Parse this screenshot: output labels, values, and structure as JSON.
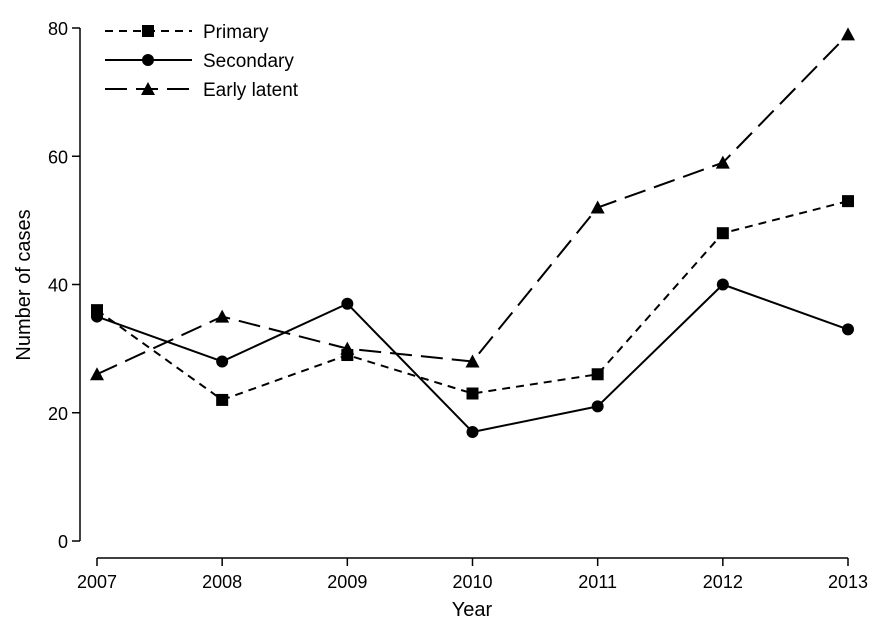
{
  "chart_data": {
    "type": "line",
    "title": "",
    "xlabel": "Year",
    "ylabel": "Number of cases",
    "x": [
      "2007",
      "2008",
      "2009",
      "2010",
      "2011",
      "2012",
      "2013"
    ],
    "ylim": [
      0,
      80
    ],
    "yticks": [
      0,
      20,
      40,
      60,
      80
    ],
    "grid": false,
    "legend_position": "top-left",
    "series": [
      {
        "name": "Primary",
        "marker": "square",
        "line_style": "short-dash",
        "values": [
          36,
          22,
          29,
          23,
          26,
          48,
          53
        ]
      },
      {
        "name": "Secondary",
        "marker": "circle",
        "line_style": "solid",
        "values": [
          35,
          28,
          37,
          17,
          21,
          40,
          33
        ]
      },
      {
        "name": "Early latent",
        "marker": "triangle",
        "line_style": "long-dash",
        "values": [
          26,
          35,
          30,
          28,
          52,
          59,
          79
        ]
      }
    ],
    "colors": {
      "line": "#000000",
      "background": "#ffffff"
    }
  }
}
